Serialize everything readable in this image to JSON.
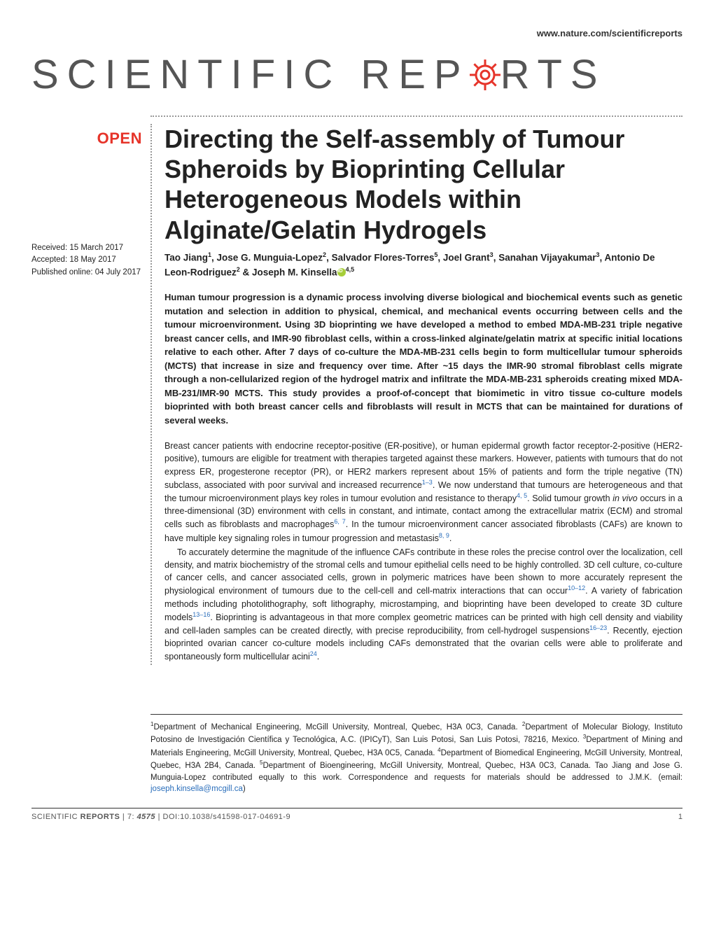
{
  "header": {
    "url": "www.nature.com/scientificreports",
    "journal_name_part1": "SCIENTIFIC",
    "journal_name_part2": "REP",
    "journal_name_part3": "RTS"
  },
  "badge": "OPEN",
  "dates": {
    "received": "Received: 15 March 2017",
    "accepted": "Accepted: 18 May 2017",
    "published": "Published online: 04 July 2017"
  },
  "title": "Directing the Self-assembly of Tumour Spheroids by Bioprinting Cellular Heterogeneous Models within Alginate/Gelatin Hydrogels",
  "authors_html": "Tao Jiang<sup>1</sup>, Jose G. Munguia-Lopez<sup>2</sup>, Salvador Flores-Torres<sup>5</sup>, Joel Grant<sup>3</sup>, Sanahan Vijayakumar<sup>3</sup>, Antonio De Leon-Rodriguez<sup>2</sup> & Joseph M. Kinsella<span class='orcid-icon' data-name='orcid-icon' data-interactable='false'></span><sup>4,5</sup>",
  "abstract": "Human tumour progression is a dynamic process involving diverse biological and biochemical events such as genetic mutation and selection in addition to physical, chemical, and mechanical events occurring between cells and the tumour microenvironment. Using 3D bioprinting we have developed a method to embed MDA-MB-231 triple negative breast cancer cells, and IMR-90 fibroblast cells, within a cross-linked alginate/gelatin matrix at specific initial locations relative to each other. After 7 days of co-culture the MDA-MB-231 cells begin to form multicellular tumour spheroids (MCTS) that increase in size and frequency over time. After ~15 days the IMR-90 stromal fibroblast cells migrate through a non-cellularized region of the hydrogel matrix and infiltrate the MDA-MB-231 spheroids creating mixed MDA-MB-231/IMR-90 MCTS. This study provides a proof-of-concept that biomimetic in vitro tissue co-culture models bioprinted with both breast cancer cells and fibroblasts will result in MCTS that can be maintained for durations of several weeks.",
  "body_p1": "Breast cancer patients with endocrine receptor-positive (ER-positive), or human epidermal growth factor receptor-2-positive (HER2-positive), tumours are eligible for treatment with therapies targeted against these markers. However, patients with tumours that do not express ER, progesterone receptor (PR), or HER2 markers represent about 15% of patients and form the triple negative (TN) subclass, associated with poor survival and increased recurrence<span class='ref-link'>1–3</span>. We now understand that tumours are heterogeneous and that the tumour microenvironment plays key roles in tumour evolution and resistance to therapy<span class='ref-link'>4, 5</span>. Solid tumour growth <span class='italic'>in vivo</span> occurs in a three-dimensional (3D) environment with cells in constant, and intimate, contact among the extracellular matrix (ECM) and stromal cells such as fibroblasts and macrophages<span class='ref-link'>6, 7</span>. In the tumour microenvironment cancer associated fibroblasts (CAFs) are known to have multiple key signaling roles in tumour progression and metastasis<span class='ref-link'>8, 9</span>.",
  "body_p2": "To accurately determine the magnitude of the influence CAFs contribute in these roles the precise control over the localization, cell density, and matrix biochemistry of the stromal cells and tumour epithelial cells need to be highly controlled. 3D cell culture, co-culture of cancer cells, and cancer associated cells, grown in polymeric matrices have been shown to more accurately represent the physiological environment of tumours due to the cell-cell and cell-matrix interactions that can occur<span class='ref-link'>10–12</span>. A variety of fabrication methods including photolithography, soft lithography, microstamping, and bioprinting have been developed to create 3D culture models<span class='ref-link'>13–16</span>. Bioprinting is advantageous in that more complex geometric matrices can be printed with high cell density and viability and cell-laden samples can be created directly, with precise reproducibility, from cell-hydrogel suspensions<span class='ref-link'>16–23</span>. Recently, ejection bioprinted ovarian cancer co-culture models including CAFs demonstrated that the ovarian cells were able to proliferate and spontaneously form multicellular acini<span class='ref-link'>24</span>.",
  "affiliations_html": "<sup>1</sup>Department of Mechanical Engineering, McGill University, Montreal, Quebec, H3A 0C3, Canada. <sup>2</sup>Department of Molecular Biology, Instituto Potosino de Investigación Científica y Tecnológica, A.C. (IPICyT), San Luis Potosi, San Luis Potosi, 78216, Mexico. <sup>3</sup>Department of Mining and Materials Engineering, McGill University, Montreal, Quebec, H3A 0C5, Canada. <sup>4</sup>Department of Biomedical Engineering, McGill University, Montreal, Quebec, H3A 2B4, Canada. <sup>5</sup>Department of Bioengineering, McGill University, Montreal, Quebec, H3A 0C3, Canada. Tao Jiang and Jose G. Munguia-Lopez contributed equally to this work. Correspondence and requests for materials should be addressed to J.M.K. (email: <span class='email-link'>joseph.kinsella@mcgill.ca</span>)",
  "footer": {
    "journal": "SCIENTIFIC ",
    "reports": "REPORTS",
    "citation": " | 7: ",
    "article_num": "4575",
    "doi": " | DOI:10.1038/s41598-017-04691-9",
    "page_number": "1"
  },
  "colors": {
    "accent_red": "#e6342a",
    "link_blue": "#2a6ebb",
    "text": "#222222",
    "gray": "#555555",
    "orcid_green": "#a6ce39"
  }
}
